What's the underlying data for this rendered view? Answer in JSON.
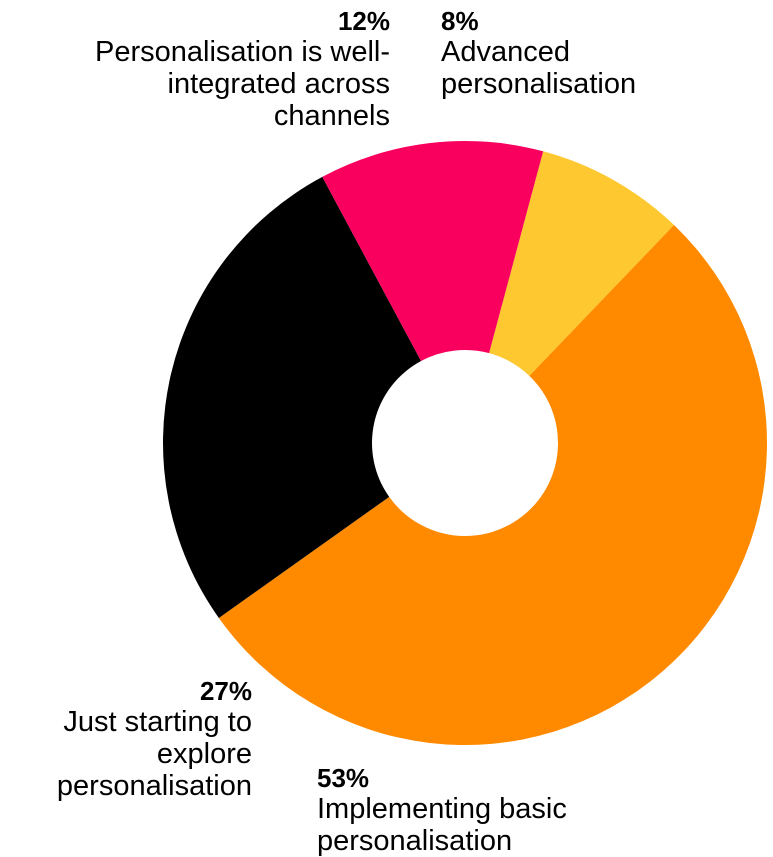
{
  "chart_data": {
    "type": "pie",
    "donut": true,
    "title": "",
    "slices": [
      {
        "name": "Advanced personalisation",
        "percent_label": "8%",
        "value": 8,
        "color": "#FDC830"
      },
      {
        "name": "Implementing basic personalisation",
        "percent_label": "53%",
        "value": 53,
        "color": "#FF8A00"
      },
      {
        "name": "Just starting to explore personalisation",
        "percent_label": "27%",
        "value": 27,
        "color": "#000000"
      },
      {
        "name": "Personalisation is well-integrated across channels",
        "percent_label": "12%",
        "value": 12,
        "color": "#FA005E"
      }
    ],
    "legend": "none"
  }
}
